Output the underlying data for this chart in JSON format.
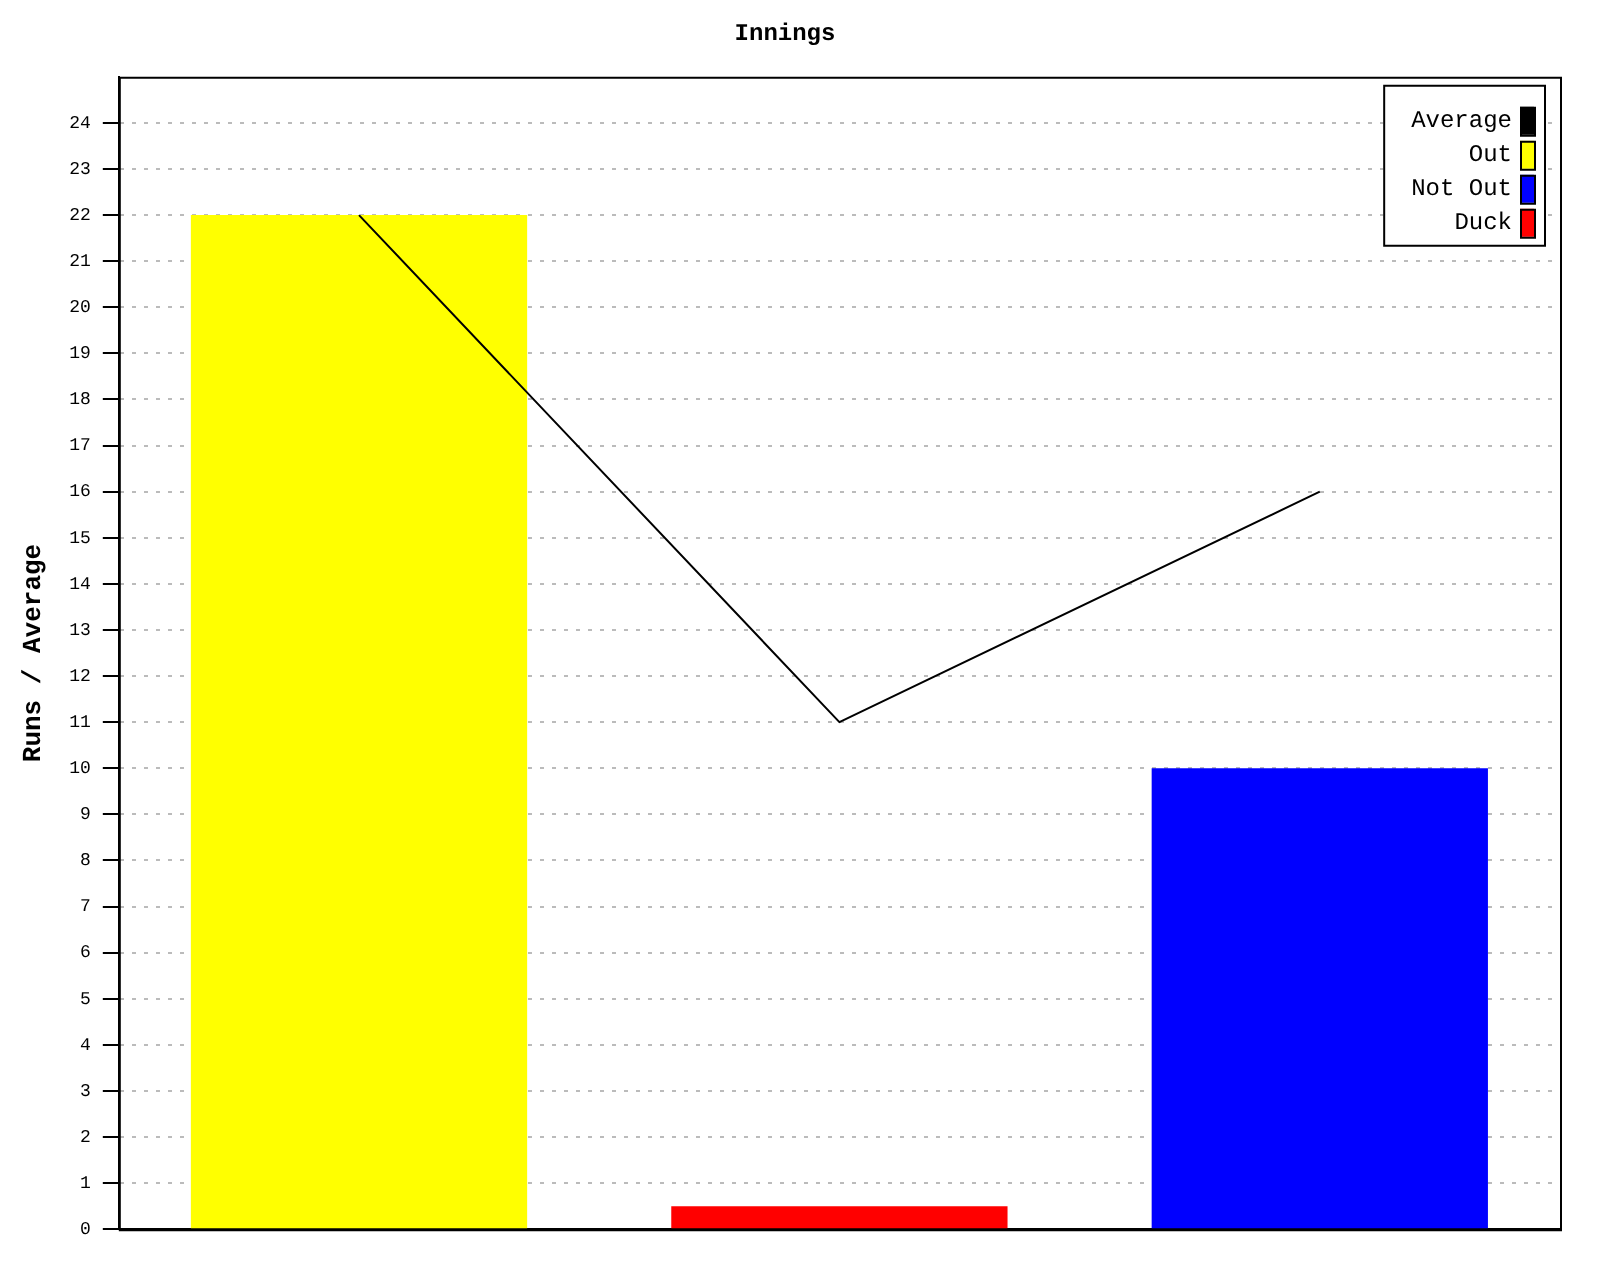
{
  "chart_data": {
    "type": "bar",
    "title": "Innings",
    "ylabel": "Runs / Average",
    "categories": [
      null,
      null,
      null
    ],
    "series": [
      {
        "name": "Average",
        "type": "line",
        "color": "#000000",
        "values": [
          22,
          11,
          16
        ]
      },
      {
        "name": "Out",
        "color": "#ffff00",
        "values": [
          22,
          null,
          null
        ]
      },
      {
        "name": "Not Out",
        "color": "#0000ff",
        "values": [
          null,
          null,
          10
        ]
      },
      {
        "name": "Duck",
        "color": "#ff0000",
        "values": [
          null,
          0.5,
          null
        ]
      }
    ],
    "ylim": [
      0,
      25
    ],
    "yticks": [
      0,
      1,
      2,
      3,
      4,
      5,
      6,
      7,
      8,
      9,
      10,
      11,
      12,
      13,
      14,
      15,
      16,
      17,
      18,
      19,
      20,
      21,
      22,
      23,
      24
    ],
    "grid": "y",
    "legend": "top right",
    "marker": "none"
  }
}
